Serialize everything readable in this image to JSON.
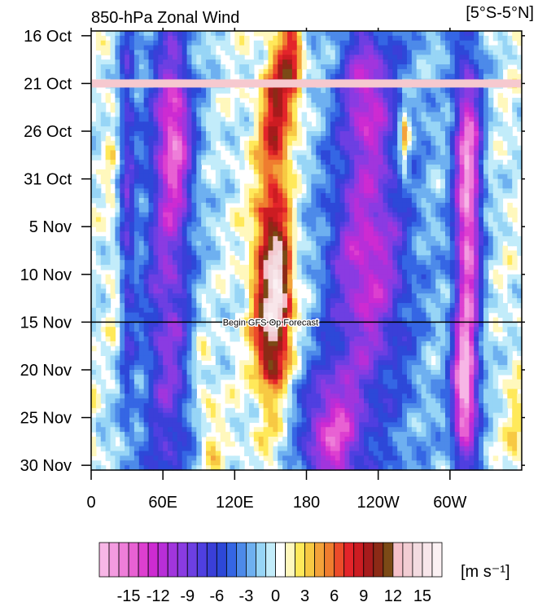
{
  "chart_data": {
    "type": "heatmap",
    "title": "850-hPa Zonal Wind",
    "region_label": "[5°S-5°N]",
    "units_label": "[m s⁻¹]",
    "xlabel": "",
    "ylabel": "",
    "x_ticks": [
      "0",
      "60E",
      "120E",
      "180",
      "120W",
      "60W"
    ],
    "x_tick_lon": [
      0,
      60,
      120,
      180,
      240,
      300
    ],
    "xlim": [
      0,
      360
    ],
    "y_ticks": [
      "16 Oct",
      "21 Oct",
      "26 Oct",
      "31 Oct",
      "5 Nov",
      "10 Nov",
      "15 Nov",
      "20 Nov",
      "25 Nov",
      "30 Nov"
    ],
    "y_tick_day": [
      0,
      5,
      10,
      15,
      20,
      25,
      30,
      35,
      40,
      45
    ],
    "ylim": [
      -0.5,
      45.5
    ],
    "forecast_label": "Begin GFS Op Forecast",
    "forecast_start_day": 30,
    "highlight_day": 5,
    "highlight_color": "#f6c9cf",
    "colorbar": {
      "levels": [
        -17,
        -16,
        -15,
        -14,
        -13,
        -12,
        -11,
        -10,
        -9,
        -8,
        -7,
        -6,
        -5,
        -4,
        -3,
        -2,
        -1,
        0,
        1,
        2,
        3,
        4,
        5,
        6,
        7,
        8,
        9,
        10,
        11,
        12,
        13,
        14,
        15,
        16
      ],
      "colors": [
        "#f7b6e6",
        "#f39be0",
        "#ee7ed9",
        "#e861d3",
        "#dd3fd0",
        "#cd2bd2",
        "#b82ed8",
        "#a135dd",
        "#8a3be2",
        "#6d3fe2",
        "#4f3fe0",
        "#3a3fd8",
        "#2d48d8",
        "#3566e4",
        "#4d8ae9",
        "#6eb0f0",
        "#97d5f6",
        "#c2ecfa",
        "#ffffff",
        "#fff8bd",
        "#ffe95a",
        "#f7c943",
        "#f3a23a",
        "#ef7d2f",
        "#ec4b2a",
        "#e3242a",
        "#cc1c22",
        "#a71b1c",
        "#8c2a16",
        "#7b4a16",
        "#f5c1ca",
        "#f2cdd3",
        "#f3dbe0",
        "#f8e6ea",
        "#fbf1f3"
      ],
      "tick_labels": [
        "-15",
        "-12",
        "-9",
        "-6",
        "-3",
        "0",
        "3",
        "6",
        "9",
        "12",
        "15"
      ],
      "tick_values": [
        -15,
        -12,
        -9,
        -6,
        -3,
        0,
        3,
        6,
        9,
        12,
        15
      ]
    },
    "features": [
      {
        "lon": 167,
        "day": 3,
        "dlon": 7,
        "dday": 4,
        "amp": 9
      },
      {
        "lon": 154,
        "day": 8,
        "dlon": 7,
        "dday": 4,
        "amp": 7
      },
      {
        "lon": 152,
        "day": 24,
        "dlon": 10,
        "dday": 9,
        "amp": 9
      },
      {
        "lon": 160,
        "day": 26,
        "dlon": 5,
        "dday": 3,
        "amp": 6
      },
      {
        "lon": 150,
        "day": 31,
        "dlon": 8,
        "dday": 4,
        "amp": 6
      },
      {
        "lon": 262,
        "day": 11,
        "dlon": 3,
        "dday": 3,
        "amp": 7
      },
      {
        "lon": 100,
        "day": 42,
        "dlon": 7,
        "dday": 5,
        "amp": 3
      },
      {
        "lon": 90,
        "day": 33,
        "dlon": 6,
        "dday": 6,
        "amp": 2
      },
      {
        "lon": 17,
        "day": 12,
        "dlon": 5,
        "dday": 6,
        "amp": 2
      },
      {
        "lon": 20,
        "day": 28,
        "dlon": 5,
        "dday": 5,
        "amp": 2
      },
      {
        "lon": 355,
        "day": 42,
        "dlon": 5,
        "dday": 4,
        "amp": 3
      },
      {
        "lon": 30,
        "day": 15,
        "dlon": 5,
        "dday": 20,
        "amp": -6
      },
      {
        "lon": 65,
        "day": 28,
        "dlon": 14,
        "dday": 18,
        "amp": -7
      },
      {
        "lon": 70,
        "day": 10,
        "dlon": 10,
        "dday": 6,
        "amp": -9
      },
      {
        "lon": 230,
        "day": 6,
        "dlon": 14,
        "dday": 5,
        "amp": -8
      },
      {
        "lon": 230,
        "day": 24,
        "dlon": 22,
        "dday": 9,
        "amp": -9
      },
      {
        "lon": 200,
        "day": 42,
        "dlon": 18,
        "dday": 5,
        "amp": -11
      },
      {
        "lon": 315,
        "day": 12,
        "dlon": 8,
        "dday": 6,
        "amp": -10
      },
      {
        "lon": 312,
        "day": 37,
        "dlon": 7,
        "dday": 5,
        "amp": -14
      },
      {
        "lon": 315,
        "day": 24,
        "dlon": 7,
        "dday": 6,
        "amp": -9
      }
    ]
  }
}
